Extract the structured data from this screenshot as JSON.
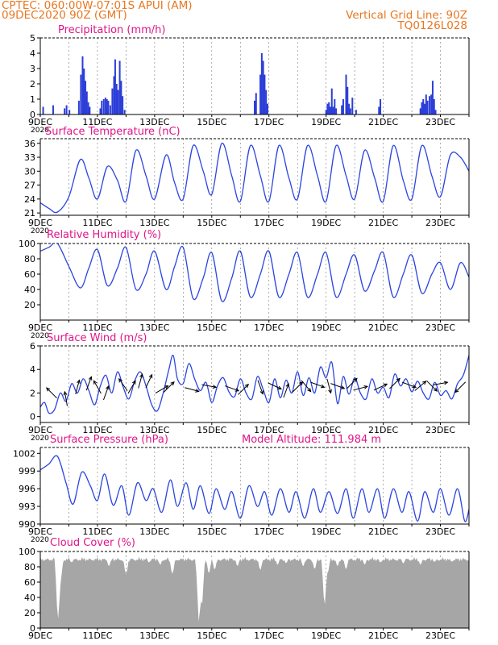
{
  "header": {
    "line1_left": "CPTEC:   060:00W-07:01S   APUI (AM)",
    "line2_left": "09DEC2020 90Z (GMT)",
    "line2_right": "Vertical Grid Line: 90Z",
    "line3_right": "TQ0126L028"
  },
  "colors": {
    "header_text": "#e87722",
    "title_text": "#e0158a",
    "series_line": "#2b45e0",
    "precip_bar": "#2c3ed8",
    "cloud_fill": "#a6a6a6",
    "wind_arrow": "#000000"
  },
  "x_tick_labels": [
    "9DEC",
    "11DEC",
    "13DEC",
    "15DEC",
    "17DEC",
    "19DEC",
    "21DEC",
    "23DEC"
  ],
  "x_axis_years": [
    "2020",
    "2020",
    "2020",
    "2020",
    "2020",
    "2020"
  ],
  "chart_data": [
    {
      "id": "precip",
      "type": "bar",
      "title": "Precipitation (mm/h)",
      "yticks": [
        0,
        1,
        2,
        3,
        4,
        5
      ],
      "ylim": [
        0,
        5
      ],
      "xlim": [
        9,
        24
      ],
      "x_unit": "day of December 2020",
      "bars": [
        {
          "x": 9.1,
          "v": 0.5
        },
        {
          "x": 9.45,
          "v": 0.6
        },
        {
          "x": 9.85,
          "v": 0.4
        },
        {
          "x": 9.92,
          "v": 0.6
        },
        {
          "x": 10.02,
          "v": 0.3
        },
        {
          "x": 10.35,
          "v": 0.9
        },
        {
          "x": 10.42,
          "v": 2.6
        },
        {
          "x": 10.48,
          "v": 3.8
        },
        {
          "x": 10.53,
          "v": 3.0
        },
        {
          "x": 10.58,
          "v": 2.2
        },
        {
          "x": 10.63,
          "v": 1.5
        },
        {
          "x": 10.68,
          "v": 0.8
        },
        {
          "x": 10.73,
          "v": 0.5
        },
        {
          "x": 11.1,
          "v": 0.4
        },
        {
          "x": 11.15,
          "v": 0.9
        },
        {
          "x": 11.22,
          "v": 1.0
        },
        {
          "x": 11.28,
          "v": 1.1
        },
        {
          "x": 11.33,
          "v": 1.0
        },
        {
          "x": 11.38,
          "v": 0.9
        },
        {
          "x": 11.45,
          "v": 0.6
        },
        {
          "x": 11.52,
          "v": 1.7
        },
        {
          "x": 11.58,
          "v": 2.5
        },
        {
          "x": 11.62,
          "v": 3.6
        },
        {
          "x": 11.67,
          "v": 2.0
        },
        {
          "x": 11.72,
          "v": 1.6
        },
        {
          "x": 11.78,
          "v": 3.5
        },
        {
          "x": 11.83,
          "v": 2.2
        },
        {
          "x": 11.88,
          "v": 1.2
        },
        {
          "x": 11.95,
          "v": 0.3
        },
        {
          "x": 16.5,
          "v": 0.9
        },
        {
          "x": 16.55,
          "v": 1.4
        },
        {
          "x": 16.7,
          "v": 2.6
        },
        {
          "x": 16.75,
          "v": 4.0
        },
        {
          "x": 16.8,
          "v": 3.5
        },
        {
          "x": 16.85,
          "v": 2.6
        },
        {
          "x": 16.9,
          "v": 1.6
        },
        {
          "x": 16.95,
          "v": 0.7
        },
        {
          "x": 19.0,
          "v": 0.3
        },
        {
          "x": 19.05,
          "v": 0.7
        },
        {
          "x": 19.1,
          "v": 0.8
        },
        {
          "x": 19.15,
          "v": 0.5
        },
        {
          "x": 19.2,
          "v": 1.7
        },
        {
          "x": 19.25,
          "v": 0.5
        },
        {
          "x": 19.3,
          "v": 1.0
        },
        {
          "x": 19.35,
          "v": 0.4
        },
        {
          "x": 19.55,
          "v": 0.6
        },
        {
          "x": 19.6,
          "v": 1.0
        },
        {
          "x": 19.7,
          "v": 2.6
        },
        {
          "x": 19.75,
          "v": 1.8
        },
        {
          "x": 19.8,
          "v": 0.7
        },
        {
          "x": 19.85,
          "v": 0.4
        },
        {
          "x": 19.92,
          "v": 1.1
        },
        {
          "x": 20.05,
          "v": 0.3
        },
        {
          "x": 20.85,
          "v": 0.5
        },
        {
          "x": 20.9,
          "v": 1.0
        },
        {
          "x": 22.3,
          "v": 0.4
        },
        {
          "x": 22.35,
          "v": 0.8
        },
        {
          "x": 22.4,
          "v": 1.0
        },
        {
          "x": 22.45,
          "v": 0.7
        },
        {
          "x": 22.5,
          "v": 1.3
        },
        {
          "x": 22.55,
          "v": 0.9
        },
        {
          "x": 22.62,
          "v": 1.2
        },
        {
          "x": 22.68,
          "v": 1.3
        },
        {
          "x": 22.73,
          "v": 2.2
        },
        {
          "x": 22.78,
          "v": 1.0
        },
        {
          "x": 22.83,
          "v": 0.3
        }
      ]
    },
    {
      "id": "temp",
      "type": "line",
      "title": "Surface Temperature (nC)",
      "yticks": [
        21,
        24,
        27,
        30,
        33,
        36
      ],
      "ylim": [
        20.5,
        37
      ],
      "xlim": [
        9,
        24
      ],
      "x_unit": "day of December 2020",
      "x": [
        9.0,
        9.3,
        9.6,
        10.0,
        10.4,
        10.7,
        11.0,
        11.35,
        11.7,
        12.0,
        12.35,
        12.7,
        13.0,
        13.4,
        13.7,
        14.0,
        14.35,
        14.7,
        15.0,
        15.35,
        15.7,
        16.0,
        16.35,
        16.7,
        17.0,
        17.35,
        17.7,
        18.0,
        18.35,
        18.7,
        19.0,
        19.35,
        19.7,
        20.0,
        20.35,
        20.7,
        21.0,
        21.35,
        21.7,
        22.0,
        22.35,
        22.7,
        23.0,
        23.35,
        23.7,
        24.0
      ],
      "y": [
        23.2,
        22.0,
        21.2,
        24.5,
        32.5,
        28.5,
        24.0,
        31.0,
        28.0,
        23.5,
        34.5,
        29.0,
        24.0,
        33.5,
        27.5,
        24.0,
        35.5,
        30.0,
        25.0,
        36.0,
        29.0,
        23.5,
        35.5,
        29.0,
        23.5,
        35.5,
        28.5,
        24.0,
        35.5,
        29.0,
        23.5,
        35.5,
        29.0,
        24.0,
        34.5,
        28.5,
        23.5,
        35.5,
        28.0,
        24.0,
        35.5,
        29.0,
        24.5,
        33.5,
        33.0,
        30.0
      ]
    },
    {
      "id": "rh",
      "type": "line",
      "title": "Relative Humidity (%)",
      "yticks": [
        20,
        40,
        60,
        80,
        100
      ],
      "ylim": [
        0,
        100
      ],
      "xlim": [
        9,
        24
      ],
      "x_unit": "day of December 2020",
      "x": [
        9.0,
        9.3,
        9.6,
        10.0,
        10.4,
        10.7,
        11.0,
        11.35,
        11.7,
        12.0,
        12.35,
        12.7,
        13.0,
        13.4,
        13.7,
        14.0,
        14.35,
        14.7,
        15.0,
        15.35,
        15.7,
        16.0,
        16.35,
        16.7,
        17.0,
        17.35,
        17.7,
        18.0,
        18.35,
        18.7,
        19.0,
        19.35,
        19.7,
        20.0,
        20.35,
        20.7,
        21.0,
        21.35,
        21.7,
        22.0,
        22.35,
        22.7,
        23.0,
        23.35,
        23.7,
        24.0
      ],
      "y": [
        90,
        95,
        100,
        70,
        42,
        68,
        92,
        45,
        68,
        95,
        40,
        60,
        90,
        40,
        70,
        95,
        28,
        55,
        88,
        25,
        55,
        90,
        30,
        60,
        90,
        30,
        60,
        88,
        30,
        60,
        88,
        30,
        60,
        85,
        38,
        65,
        88,
        30,
        60,
        85,
        35,
        60,
        75,
        40,
        75,
        56
      ]
    },
    {
      "id": "wind",
      "type": "line",
      "title": "Surface Wind (m/s)",
      "yticks": [
        0,
        2,
        4,
        6
      ],
      "ylim": [
        -0.5,
        6
      ],
      "xlim": [
        9,
        24
      ],
      "x_unit": "day of December 2020",
      "x": [
        9.0,
        9.15,
        9.3,
        9.5,
        9.7,
        9.9,
        10.1,
        10.3,
        10.5,
        10.7,
        10.9,
        11.1,
        11.3,
        11.5,
        11.7,
        11.9,
        12.1,
        12.3,
        12.5,
        12.7,
        12.9,
        13.1,
        13.3,
        13.5,
        13.65,
        13.8,
        14.0,
        14.2,
        14.4,
        14.6,
        14.8,
        15.0,
        15.2,
        15.4,
        15.6,
        15.8,
        16.0,
        16.2,
        16.4,
        16.6,
        16.8,
        17.0,
        17.2,
        17.4,
        17.6,
        17.8,
        18.0,
        18.2,
        18.4,
        18.6,
        18.8,
        19.0,
        19.2,
        19.4,
        19.6,
        19.8,
        20.0,
        20.2,
        20.4,
        20.6,
        20.8,
        21.0,
        21.2,
        21.4,
        21.6,
        21.8,
        22.0,
        22.2,
        22.4,
        22.6,
        22.8,
        23.0,
        23.2,
        23.4,
        23.6,
        23.8,
        24.0
      ],
      "y": [
        0.8,
        1.2,
        0.3,
        0.6,
        2.0,
        1.3,
        2.8,
        2.0,
        3.2,
        2.2,
        1.0,
        2.6,
        3.5,
        2.0,
        3.8,
        2.5,
        1.5,
        3.0,
        3.8,
        2.6,
        1.0,
        0.5,
        2.0,
        4.0,
        5.2,
        3.2,
        2.8,
        4.5,
        3.2,
        2.2,
        2.9,
        1.2,
        2.6,
        3.3,
        2.1,
        1.7,
        3.2,
        2.0,
        1.5,
        3.4,
        2.3,
        1.2,
        3.2,
        1.6,
        3.1,
        2.0,
        3.8,
        1.8,
        3.3,
        2.0,
        4.2,
        3.3,
        4.6,
        1.1,
        3.4,
        1.9,
        3.3,
        2.0,
        1.5,
        3.2,
        2.0,
        2.5,
        1.6,
        3.6,
        2.6,
        3.2,
        2.1,
        3.0,
        2.0,
        1.5,
        2.9,
        1.8,
        2.2,
        1.5,
        2.8,
        3.5,
        5.2
      ],
      "arrows": [
        {
          "x": 9.4,
          "y": 2.0,
          "deg": 135
        },
        {
          "x": 9.9,
          "y": 1.5,
          "deg": 100
        },
        {
          "x": 10.3,
          "y": 2.5,
          "deg": 75
        },
        {
          "x": 10.7,
          "y": 2.8,
          "deg": 70
        },
        {
          "x": 11.0,
          "y": 2.5,
          "deg": 120
        },
        {
          "x": 11.3,
          "y": 2.0,
          "deg": 70
        },
        {
          "x": 11.9,
          "y": 2.7,
          "deg": 125
        },
        {
          "x": 12.2,
          "y": 2.5,
          "deg": 60
        },
        {
          "x": 12.5,
          "y": 3.0,
          "deg": 75
        },
        {
          "x": 12.8,
          "y": 3.0,
          "deg": 65
        },
        {
          "x": 13.25,
          "y": 2.3,
          "deg": 30
        },
        {
          "x": 13.5,
          "y": 2.5,
          "deg": 45
        },
        {
          "x": 14.3,
          "y": 2.3,
          "deg": -15
        },
        {
          "x": 14.9,
          "y": 2.6,
          "deg": -10
        },
        {
          "x": 15.7,
          "y": 2.4,
          "deg": -20
        },
        {
          "x": 16.1,
          "y": 2.3,
          "deg": 45
        },
        {
          "x": 16.7,
          "y": 2.5,
          "deg": -70
        },
        {
          "x": 17.2,
          "y": 2.6,
          "deg": -25
        },
        {
          "x": 17.6,
          "y": 2.2,
          "deg": 70
        },
        {
          "x": 18.0,
          "y": 2.5,
          "deg": 45
        },
        {
          "x": 18.3,
          "y": 2.6,
          "deg": -50
        },
        {
          "x": 18.7,
          "y": 2.7,
          "deg": -20
        },
        {
          "x": 19.1,
          "y": 2.6,
          "deg": -75
        },
        {
          "x": 19.4,
          "y": 2.6,
          "deg": -20
        },
        {
          "x": 19.9,
          "y": 2.8,
          "deg": 45
        },
        {
          "x": 20.2,
          "y": 2.4,
          "deg": 15
        },
        {
          "x": 20.9,
          "y": 2.5,
          "deg": 25
        },
        {
          "x": 21.4,
          "y": 2.8,
          "deg": 45
        },
        {
          "x": 21.9,
          "y": 2.7,
          "deg": -20
        },
        {
          "x": 22.3,
          "y": 2.6,
          "deg": 40
        },
        {
          "x": 22.7,
          "y": 2.6,
          "deg": -45
        },
        {
          "x": 23.0,
          "y": 2.8,
          "deg": 10
        },
        {
          "x": 23.7,
          "y": 2.5,
          "deg": -135
        }
      ]
    },
    {
      "id": "pres",
      "type": "line",
      "title": "Surface Pressure (hPa)",
      "extra_label": "Model Altitude: 111.984 m",
      "yticks": [
        990,
        993,
        996,
        999,
        1002
      ],
      "ylim": [
        990,
        1003
      ],
      "xlim": [
        9,
        24
      ],
      "x_unit": "day of December 2020",
      "x": [
        9.0,
        9.3,
        9.6,
        9.9,
        10.15,
        10.45,
        10.75,
        11.0,
        11.25,
        11.55,
        11.85,
        12.1,
        12.4,
        12.7,
        12.95,
        13.25,
        13.55,
        13.8,
        14.1,
        14.35,
        14.6,
        14.9,
        15.15,
        15.45,
        15.7,
        16.0,
        16.3,
        16.6,
        16.85,
        17.1,
        17.4,
        17.7,
        17.95,
        18.25,
        18.55,
        18.8,
        19.1,
        19.4,
        19.7,
        19.95,
        20.25,
        20.5,
        20.8,
        21.05,
        21.35,
        21.65,
        21.9,
        22.2,
        22.45,
        22.75,
        23.0,
        23.3,
        23.6,
        23.85,
        24.0
      ],
      "y": [
        999.2,
        1000.2,
        1001.5,
        997.0,
        993.4,
        998.8,
        996.5,
        994.0,
        998.5,
        993.2,
        996.5,
        991.5,
        997.0,
        994.0,
        996.0,
        992.0,
        997.5,
        993.0,
        997.0,
        992.5,
        996.5,
        991.8,
        996.0,
        992.5,
        995.5,
        991.0,
        996.5,
        993.0,
        995.5,
        991.5,
        996.0,
        992.0,
        995.5,
        991.0,
        996.0,
        992.0,
        995.5,
        991.8,
        996.0,
        991.0,
        996.0,
        992.0,
        996.0,
        991.0,
        996.0,
        992.0,
        995.5,
        990.5,
        995.5,
        992.0,
        996.0,
        991.5,
        996.0,
        990.5,
        992.5
      ]
    },
    {
      "id": "cloud",
      "type": "area",
      "title": "Cloud Cover (%)",
      "yticks": [
        0,
        20,
        40,
        60,
        80,
        100
      ],
      "ylim": [
        0,
        100
      ],
      "xlim": [
        9,
        24
      ],
      "x_unit": "day of December 2020",
      "base_level": 94,
      "dips": [
        {
          "x": 9.62,
          "v": 10
        },
        {
          "x": 9.7,
          "v": 55
        },
        {
          "x": 10.1,
          "v": 85
        },
        {
          "x": 11.4,
          "v": 80
        },
        {
          "x": 12.0,
          "v": 70
        },
        {
          "x": 12.8,
          "v": 85
        },
        {
          "x": 13.2,
          "v": 82
        },
        {
          "x": 13.62,
          "v": 70
        },
        {
          "x": 14.55,
          "v": 4
        },
        {
          "x": 14.65,
          "v": 25
        },
        {
          "x": 14.9,
          "v": 70
        },
        {
          "x": 15.1,
          "v": 75
        },
        {
          "x": 15.9,
          "v": 80
        },
        {
          "x": 16.7,
          "v": 75
        },
        {
          "x": 17.3,
          "v": 82
        },
        {
          "x": 17.6,
          "v": 84
        },
        {
          "x": 18.2,
          "v": 80
        },
        {
          "x": 18.6,
          "v": 76
        },
        {
          "x": 18.95,
          "v": 28
        },
        {
          "x": 19.05,
          "v": 70
        },
        {
          "x": 19.4,
          "v": 80
        },
        {
          "x": 19.7,
          "v": 76
        },
        {
          "x": 20.35,
          "v": 82
        },
        {
          "x": 20.9,
          "v": 85
        },
        {
          "x": 21.7,
          "v": 84
        },
        {
          "x": 22.3,
          "v": 82
        },
        {
          "x": 22.8,
          "v": 86
        },
        {
          "x": 23.4,
          "v": 86
        }
      ]
    }
  ]
}
